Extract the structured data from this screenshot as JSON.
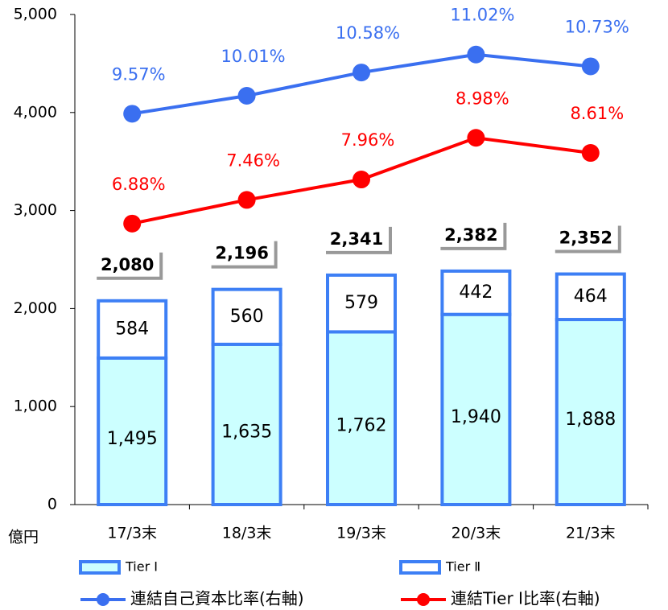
{
  "chart_data": {
    "type": "bar",
    "stacked": true,
    "categories": [
      "17/3末",
      "18/3末",
      "19/3末",
      "20/3末",
      "21/3末"
    ],
    "unit_label": "億円",
    "ylim": [
      0,
      5000
    ],
    "yticks": [
      0,
      {
        "value": 1000,
        "label": "1,000"
      },
      {
        "value": 2000,
        "label": "2,000"
      },
      {
        "value": 3000,
        "label": "3,000"
      },
      {
        "value": 4000,
        "label": "4,000"
      },
      {
        "value": 5000,
        "label": "5,000"
      }
    ],
    "y2lim": [
      0,
      12
    ],
    "total_labels": [
      "2,080",
      "2,196",
      "2,341",
      "2,382",
      "2,352"
    ],
    "series": [
      {
        "name": "Tier Ⅰ",
        "type": "bar",
        "color": "#ccffff",
        "stroke": "#3d7ff5",
        "values": [
          1495,
          1635,
          1762,
          1940,
          1888
        ],
        "value_labels": [
          "1,495",
          "1,635",
          "1,762",
          "1,940",
          "1,888"
        ]
      },
      {
        "name": "Tier Ⅱ",
        "type": "bar",
        "color": "#ffffff",
        "stroke": "#3d7ff5",
        "values": [
          584,
          560,
          579,
          442,
          464
        ]
      },
      {
        "name": "連結自己資本比率(右軸)",
        "type": "line",
        "axis": "y2",
        "color": "#3a6ff0",
        "values": [
          9.57,
          10.01,
          10.58,
          11.02,
          10.73
        ],
        "value_labels": [
          "9.57%",
          "10.01%",
          "10.58%",
          "11.02%",
          "10.73%"
        ]
      },
      {
        "name": "連結Tier Ⅰ比率(右軸)",
        "type": "line",
        "axis": "y2",
        "color": "#ff0000",
        "values": [
          6.88,
          7.46,
          7.96,
          8.98,
          8.61
        ],
        "value_labels": [
          "6.88%",
          "7.46%",
          "7.96%",
          "8.98%",
          "8.61%"
        ]
      }
    ]
  }
}
